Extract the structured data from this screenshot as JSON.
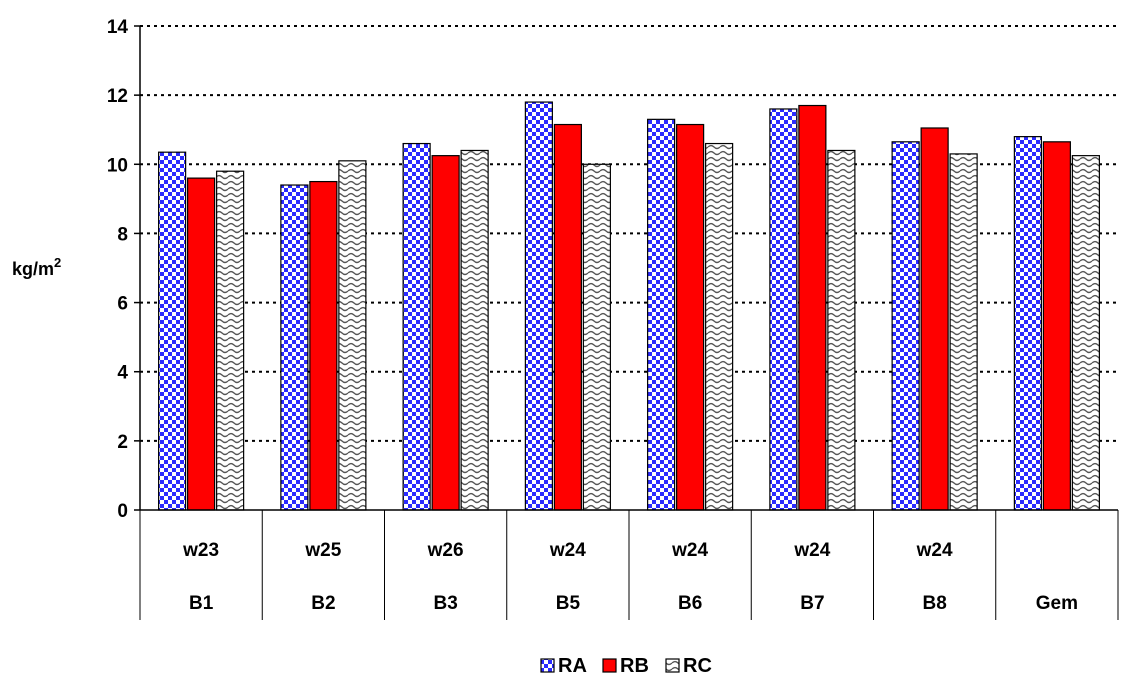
{
  "chart_data": {
    "type": "bar",
    "title": "",
    "xlabel": "",
    "ylabel": "kg/m",
    "ylabel_superscript": "2",
    "ylim": [
      0,
      14
    ],
    "yticks": [
      0,
      2,
      4,
      6,
      8,
      10,
      12,
      14
    ],
    "grid": true,
    "legend_position": "bottom-center",
    "categories": [
      "B1",
      "B2",
      "B3",
      "B5",
      "B6",
      "B7",
      "B8",
      "Gem"
    ],
    "category_weeks": [
      "w23",
      "w25",
      "w26",
      "w24",
      "w24",
      "w24",
      "w24",
      ""
    ],
    "series": [
      {
        "name": "RA",
        "values": [
          10.35,
          9.4,
          10.6,
          11.8,
          11.3,
          11.6,
          10.65,
          10.8
        ],
        "color": "#3333ff",
        "pattern": "checker"
      },
      {
        "name": "RB",
        "values": [
          9.6,
          9.5,
          10.25,
          11.15,
          11.15,
          11.7,
          11.05,
          10.65
        ],
        "color": "#ff0000",
        "pattern": "solid"
      },
      {
        "name": "RC",
        "values": [
          9.8,
          10.1,
          10.4,
          10.0,
          10.6,
          10.4,
          10.3,
          10.25
        ],
        "color": "#808080",
        "pattern": "wave"
      }
    ]
  }
}
